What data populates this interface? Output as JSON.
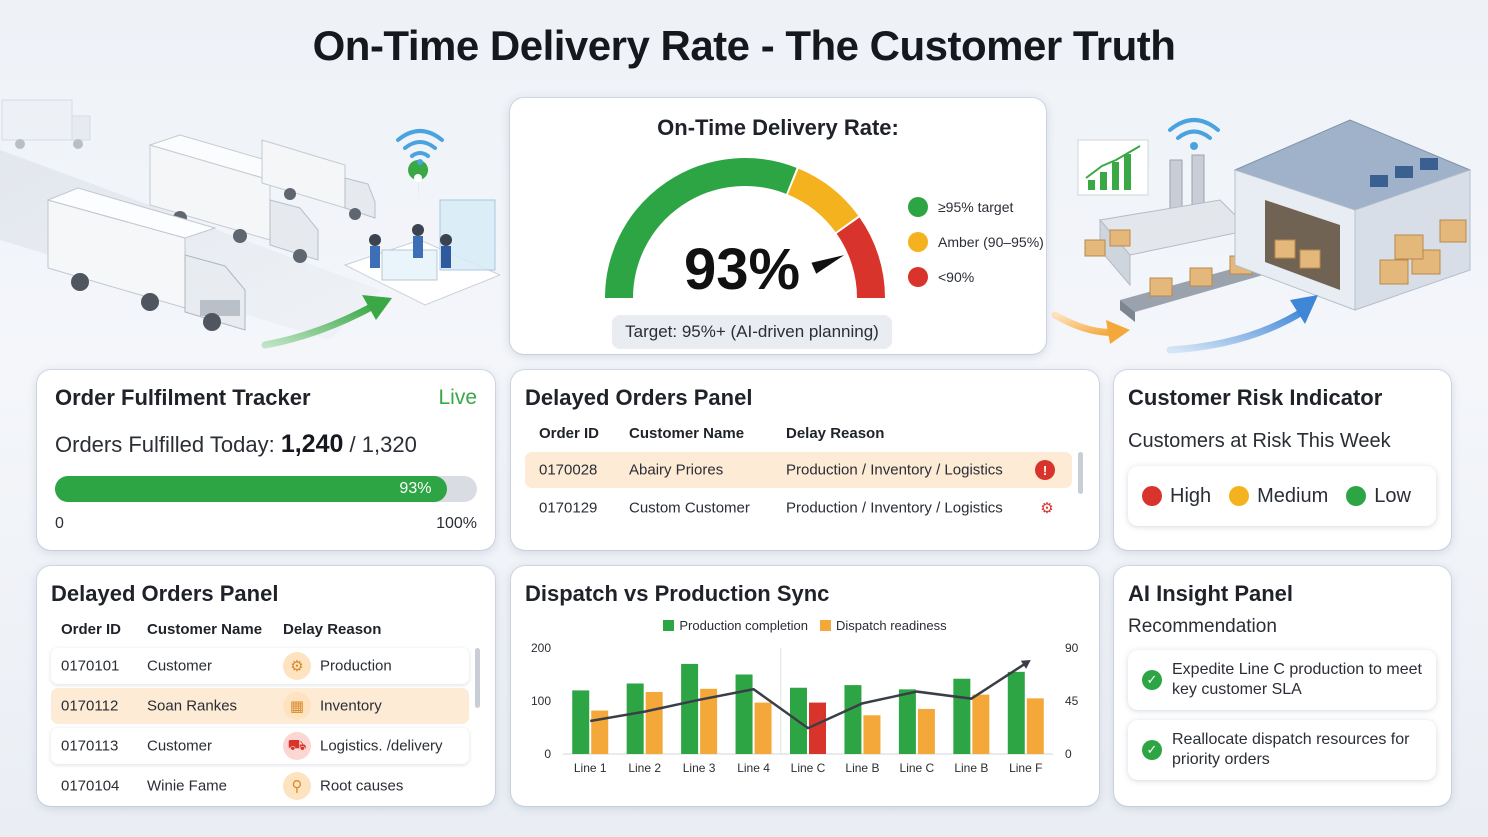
{
  "title": "On-Time Delivery Rate - The Customer Truth",
  "gauge": {
    "heading": "On-Time Delivery Rate:",
    "value_text": "93%",
    "value": 93,
    "legend": [
      {
        "label": "≥95% target",
        "color": "#2ea544"
      },
      {
        "label": "Amber (90–95%)",
        "color": "#f4b21f"
      },
      {
        "label": "<90%",
        "color": "#d9342b"
      }
    ],
    "target": "Target: 95%+ (AI-driven planning)"
  },
  "fulfilment": {
    "title": "Order Fulfilment Tracker",
    "live": "Live",
    "orders_label": "Orders Fulfilled Today:",
    "fulfilled": "1,240",
    "separator": "/",
    "total": "1,320",
    "progress_text": "93%",
    "progress_fraction": 0.93,
    "min_label": "0",
    "max_label": "100%"
  },
  "delayed_top": {
    "title": "Delayed Orders Panel",
    "headers": [
      "Order ID",
      "Customer Name",
      "Delay Reason"
    ],
    "rows": [
      {
        "id": "0170028",
        "customer": "Abairy Priores",
        "reason": "Production / Inventory / Logistics",
        "icon": "alert-icon"
      },
      {
        "id": "0170129",
        "customer": "Custom Customer",
        "reason": "Production / Inventory / Logistics",
        "icon": "gear-link-icon"
      }
    ]
  },
  "risk": {
    "title": "Customer Risk Indicator",
    "subtitle": "Customers at Risk This Week",
    "levels": [
      {
        "label": "High",
        "color": "#d9342b"
      },
      {
        "label": "Medium",
        "color": "#f4b21f"
      },
      {
        "label": "Low",
        "color": "#2ea544"
      }
    ]
  },
  "delayed_bottom": {
    "title": "Delayed Orders Panel",
    "headers": [
      "Order ID",
      "Customer Name",
      "Delay Reason"
    ],
    "rows": [
      {
        "id": "0170101",
        "customer": "Customer",
        "reason": "Production",
        "icon": "gear-icon",
        "glyph": "⚙"
      },
      {
        "id": "0170112",
        "customer": "Soan Rankes",
        "reason": "Inventory",
        "icon": "boxes-icon",
        "glyph": "▦"
      },
      {
        "id": "0170113",
        "customer": "Customer",
        "reason": "Logistics. /delivery",
        "icon": "truck-icon",
        "glyph": "⛟"
      },
      {
        "id": "0170104",
        "customer": "Winie Fame",
        "reason": "Root causes",
        "icon": "magnifier-icon",
        "glyph": "⚲"
      }
    ]
  },
  "chart_title": "Dispatch vs Production Sync",
  "chart_data": {
    "type": "bar",
    "title": "Dispatch vs Production Sync",
    "categories": [
      "Line 1",
      "Line 2",
      "Line 3",
      "Line 4",
      "Line C",
      "Line B",
      "Line C",
      "Line B",
      "Line F"
    ],
    "series": [
      {
        "name": "Production completion",
        "values": [
          120,
          133,
          170,
          150,
          125,
          130,
          122,
          142,
          155
        ],
        "color": "#2ea544"
      },
      {
        "name": "Dispatch readiness",
        "values": [
          82,
          117,
          123,
          97,
          97,
          73,
          85,
          112,
          105
        ],
        "color": "#f4a83a"
      }
    ],
    "line": {
      "values": [
        28,
        36,
        46,
        55,
        22,
        43,
        53,
        47,
        77
      ]
    },
    "left_axis": {
      "ticks": [
        "0",
        "100",
        "200"
      ],
      "range": [
        0,
        200
      ]
    },
    "right_axis": {
      "ticks": [
        "0",
        "45",
        "90"
      ],
      "range": [
        0,
        90
      ]
    },
    "highlight_index": 4,
    "highlight_color": "#d9342b"
  },
  "ai": {
    "title": "AI Insight Panel",
    "subtitle": "Recommendation",
    "items": [
      "Expedite Line C production to meet key customer SLA",
      "Reallocate dispatch resources for priority orders"
    ]
  }
}
